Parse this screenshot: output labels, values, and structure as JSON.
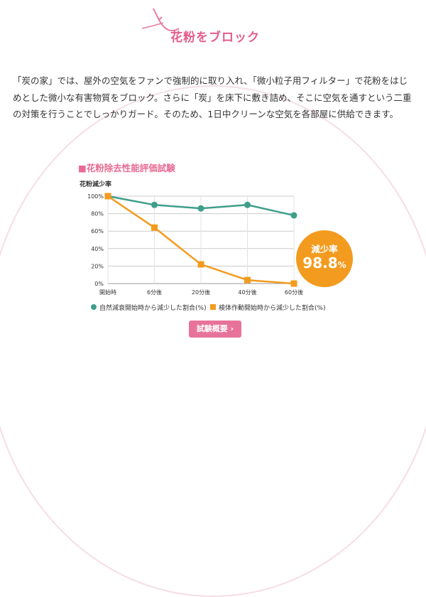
{
  "section_title": "花粉をブロック",
  "body_text": "「炭の家」では、屋外の空気をファンで強制的に取り入れ、「微小粒子用フィルター」で花粉をはじめとした微小な有害物質をブロック。さらに「炭」を床下に敷き詰め、そこに空気を通すという二重の対策を行うことでしっかりガード。そのため、1日中クリーンな空気を各部屋に供給できます。",
  "chart_title": "■花粉除去性能評価試験",
  "chart_data": {
    "type": "line",
    "title": "花粉除去性能評価試験",
    "ylabel": "花粉減少率",
    "xlabel": "",
    "categories": [
      "開始時",
      "6分後",
      "20分後",
      "40分後",
      "60分後"
    ],
    "yticks": [
      "100%",
      "80%",
      "60%",
      "40%",
      "20%",
      "0%"
    ],
    "ylim": [
      0,
      100
    ],
    "grid": true,
    "legend_position": "bottom",
    "series": [
      {
        "name": "自然減衰開始時から減少した割合(%)",
        "color": "#3e9e8a",
        "marker": "circle",
        "values": [
          100,
          90,
          86,
          90,
          78
        ]
      },
      {
        "name": "検体作動開始時から減少した割合(%)",
        "color": "#f39b1e",
        "marker": "square",
        "values": [
          100,
          64,
          22,
          4,
          0
        ]
      }
    ],
    "annotation": {
      "label": "減少率",
      "value": "98.8",
      "unit": "%"
    }
  },
  "detail_button_label": "試験概要 ›",
  "colors": {
    "accent_pink": "#e45d8a",
    "teal": "#3e9e8a",
    "orange": "#f39b1e",
    "grid": "#cccccc"
  }
}
